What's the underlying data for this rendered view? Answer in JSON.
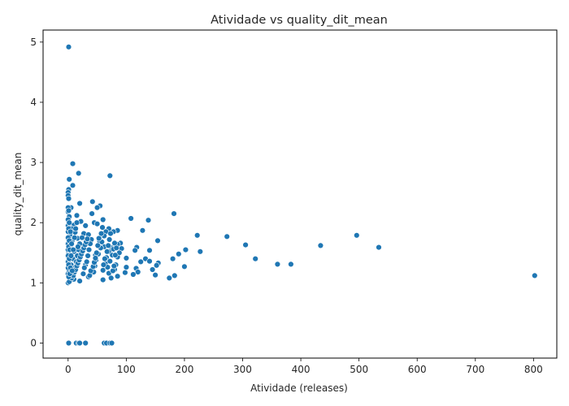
{
  "chart_data": {
    "type": "scatter",
    "title": "Atividade vs quality_dit_mean",
    "xlabel": "Atividade (releases)",
    "ylabel": "quality_dit_mean",
    "xlim": [
      -43,
      840
    ],
    "ylim": [
      -0.25,
      5.2
    ],
    "xticks": [
      0,
      100,
      200,
      300,
      400,
      500,
      600,
      700,
      800
    ],
    "yticks": [
      0,
      1,
      2,
      3,
      4,
      5
    ],
    "grid": false,
    "legend": "none",
    "marker_color": "#1f77b4",
    "points": [
      [
        1,
        4.92
      ],
      [
        8,
        2.98
      ],
      [
        18,
        2.82
      ],
      [
        72,
        2.78
      ],
      [
        2,
        2.72
      ],
      [
        8,
        2.62
      ],
      [
        1,
        2.55
      ],
      [
        0,
        2.5
      ],
      [
        0,
        2.45
      ],
      [
        1,
        2.4
      ],
      [
        42,
        2.35
      ],
      [
        20,
        2.32
      ],
      [
        55,
        2.28
      ],
      [
        50,
        2.25
      ],
      [
        5,
        2.25
      ],
      [
        41,
        2.15
      ],
      [
        182,
        2.15
      ],
      [
        15,
        2.12
      ],
      [
        0,
        2.18
      ],
      [
        2,
        2.1
      ],
      [
        108,
        2.07
      ],
      [
        138,
        2.04
      ],
      [
        60,
        2.05
      ],
      [
        22,
        2.02
      ],
      [
        45,
        2.0
      ],
      [
        50,
        1.98
      ],
      [
        10,
        1.96
      ],
      [
        30,
        1.95
      ],
      [
        3,
        1.92
      ],
      [
        70,
        1.9
      ],
      [
        85,
        1.87
      ],
      [
        128,
        1.87
      ],
      [
        65,
        1.85
      ],
      [
        78,
        1.85
      ],
      [
        12,
        1.84
      ],
      [
        27,
        1.82
      ],
      [
        35,
        1.8
      ],
      [
        222,
        1.79
      ],
      [
        496,
        1.79
      ],
      [
        273,
        1.77
      ],
      [
        5,
        1.76
      ],
      [
        16,
        1.74
      ],
      [
        40,
        1.72
      ],
      [
        154,
        1.7
      ],
      [
        54,
        1.7
      ],
      [
        90,
        1.66
      ],
      [
        85,
        1.64
      ],
      [
        305,
        1.63
      ],
      [
        434,
        1.62
      ],
      [
        62,
        1.6
      ],
      [
        534,
        1.59
      ],
      [
        118,
        1.59
      ],
      [
        75,
        1.58
      ],
      [
        92,
        1.57
      ],
      [
        140,
        1.54
      ],
      [
        202,
        1.55
      ],
      [
        115,
        1.54
      ],
      [
        227,
        1.52
      ],
      [
        70,
        1.52
      ],
      [
        10,
        1.52
      ],
      [
        190,
        1.48
      ],
      [
        22,
        1.47
      ],
      [
        47,
        1.46
      ],
      [
        85,
        1.43
      ],
      [
        100,
        1.41
      ],
      [
        133,
        1.4
      ],
      [
        180,
        1.4
      ],
      [
        322,
        1.4
      ],
      [
        140,
        1.36
      ],
      [
        125,
        1.35
      ],
      [
        155,
        1.33
      ],
      [
        360,
        1.31
      ],
      [
        383,
        1.31
      ],
      [
        152,
        1.29
      ],
      [
        30,
        1.3
      ],
      [
        200,
        1.27
      ],
      [
        100,
        1.26
      ],
      [
        117,
        1.24
      ],
      [
        145,
        1.22
      ],
      [
        80,
        1.22
      ],
      [
        60,
        1.21
      ],
      [
        120,
        1.18
      ],
      [
        98,
        1.17
      ],
      [
        70,
        1.16
      ],
      [
        112,
        1.14
      ],
      [
        150,
        1.13
      ],
      [
        183,
        1.12
      ],
      [
        802,
        1.12
      ],
      [
        174,
        1.08
      ],
      [
        85,
        1.11
      ],
      [
        60,
        1.05
      ],
      [
        35,
        1.1
      ],
      [
        20,
        1.03
      ],
      [
        74,
        1.08
      ],
      [
        3,
        1.04
      ],
      [
        10,
        1.06
      ],
      [
        0,
        1.15
      ],
      [
        2,
        1.2
      ],
      [
        5,
        1.3
      ],
      [
        8,
        1.4
      ],
      [
        1,
        1.5
      ],
      [
        4,
        1.6
      ],
      [
        7,
        1.7
      ],
      [
        3,
        1.8
      ],
      [
        6,
        1.9
      ],
      [
        1,
        2.0
      ],
      [
        12,
        1.25
      ],
      [
        14,
        1.35
      ],
      [
        16,
        1.45
      ],
      [
        18,
        1.55
      ],
      [
        20,
        1.65
      ],
      [
        24,
        1.75
      ],
      [
        26,
        1.15
      ],
      [
        28,
        1.25
      ],
      [
        32,
        1.35
      ],
      [
        34,
        1.45
      ],
      [
        36,
        1.55
      ],
      [
        38,
        1.65
      ],
      [
        44,
        1.18
      ],
      [
        46,
        1.28
      ],
      [
        48,
        1.38
      ],
      [
        52,
        1.48
      ],
      [
        56,
        1.58
      ],
      [
        58,
        1.68
      ],
      [
        62,
        1.78
      ],
      [
        64,
        1.32
      ],
      [
        66,
        1.42
      ],
      [
        68,
        1.26
      ],
      [
        72,
        1.36
      ],
      [
        76,
        1.46
      ],
      [
        78,
        1.56
      ],
      [
        80,
        1.66
      ],
      [
        82,
        1.3
      ],
      [
        88,
        1.5
      ],
      [
        0,
        1.0
      ],
      [
        2,
        1.02
      ],
      [
        6,
        1.08
      ],
      [
        9,
        1.12
      ],
      [
        11,
        1.18
      ],
      [
        13,
        1.22
      ],
      [
        15,
        1.28
      ],
      [
        17,
        1.33
      ],
      [
        19,
        1.38
      ],
      [
        21,
        1.43
      ],
      [
        23,
        1.48
      ],
      [
        25,
        1.53
      ],
      [
        27,
        1.58
      ],
      [
        29,
        1.63
      ],
      [
        31,
        1.68
      ],
      [
        33,
        1.73
      ],
      [
        37,
        1.12
      ],
      [
        39,
        1.2
      ],
      [
        43,
        1.27
      ],
      [
        45,
        1.34
      ],
      [
        47,
        1.41
      ],
      [
        49,
        1.5
      ],
      [
        51,
        1.62
      ],
      [
        53,
        1.74
      ],
      [
        57,
        1.82
      ],
      [
        59,
        1.92
      ],
      [
        61,
        1.3
      ],
      [
        63,
        1.4
      ],
      [
        67,
        1.52
      ],
      [
        69,
        1.62
      ],
      [
        71,
        1.72
      ],
      [
        73,
        1.82
      ],
      [
        77,
        1.2
      ],
      [
        79,
        1.28
      ],
      [
        81,
        1.46
      ],
      [
        83,
        1.58
      ],
      [
        0,
        1.25
      ],
      [
        0,
        1.35
      ],
      [
        0,
        1.45
      ],
      [
        0,
        1.55
      ],
      [
        0,
        1.65
      ],
      [
        0,
        1.75
      ],
      [
        0,
        1.85
      ],
      [
        0,
        1.95
      ],
      [
        0,
        2.05
      ],
      [
        0,
        2.25
      ],
      [
        1,
        1.1
      ],
      [
        1,
        1.3
      ],
      [
        1,
        1.6
      ],
      [
        1,
        1.9
      ],
      [
        1,
        2.2
      ],
      [
        2,
        1.4
      ],
      [
        2,
        1.7
      ],
      [
        2,
        2.0
      ],
      [
        3,
        1.15
      ],
      [
        3,
        1.55
      ],
      [
        4,
        1.25
      ],
      [
        4,
        1.85
      ],
      [
        5,
        1.45
      ],
      [
        6,
        1.65
      ],
      [
        7,
        1.2
      ],
      [
        9,
        1.55
      ],
      [
        11,
        1.75
      ],
      [
        13,
        1.9
      ],
      [
        15,
        2.0
      ],
      [
        17,
        1.6
      ],
      [
        1,
        0.0
      ],
      [
        14,
        0.0
      ],
      [
        18,
        0.0
      ],
      [
        20,
        0.0
      ],
      [
        30,
        0.0
      ],
      [
        62,
        0.0
      ],
      [
        66,
        0.0
      ],
      [
        72,
        0.0
      ],
      [
        75,
        0.0
      ]
    ]
  }
}
